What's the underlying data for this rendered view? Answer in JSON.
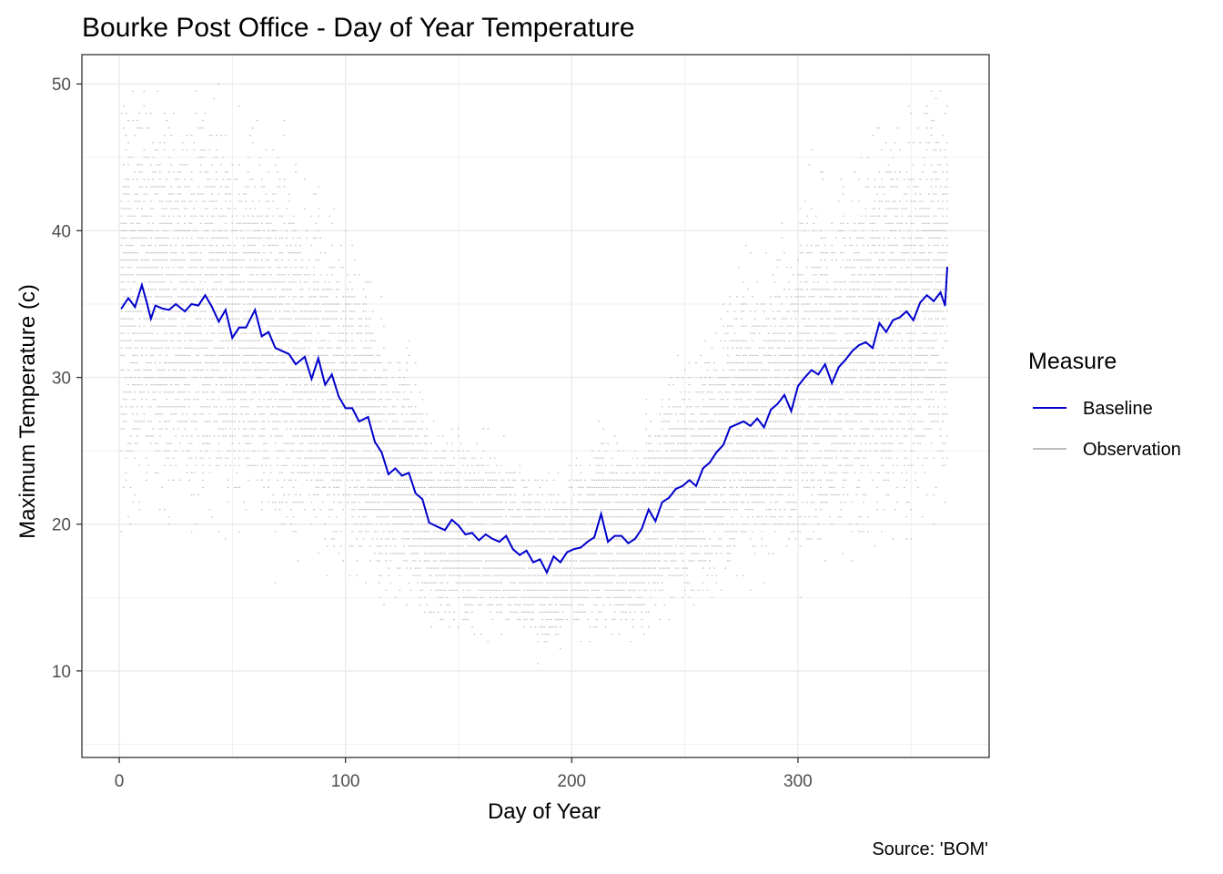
{
  "chart_data": {
    "type": "line",
    "title": "Bourke Post Office - Day of Year Temperature",
    "xlabel": "Day of Year",
    "ylabel": "Maximum Temperature (c)",
    "caption": "Source: 'BOM'",
    "xlim": [
      -16.5,
      384.5
    ],
    "ylim": [
      4.1,
      52.0
    ],
    "x_ticks": [
      0,
      100,
      200,
      300
    ],
    "y_ticks": [
      10,
      20,
      30,
      40,
      50
    ],
    "x_tick_labels": [
      "0",
      "100",
      "200",
      "300"
    ],
    "y_tick_labels": [
      "10",
      "20",
      "30",
      "40",
      "50"
    ],
    "grid": true,
    "legend": {
      "title": "Measure",
      "position": "right",
      "entries": [
        {
          "label": "Baseline",
          "color": "#0000cd"
        },
        {
          "label": "Observation",
          "color": "#bdbdbd"
        }
      ]
    },
    "colors": {
      "baseline": "#0000cd",
      "observation": "#bdbdbd",
      "grid": "#ebebeb"
    },
    "series": [
      {
        "name": "Baseline",
        "x": [
          1,
          4,
          7,
          10,
          12,
          14,
          16,
          19,
          22,
          25,
          29,
          32,
          35,
          38,
          41,
          44,
          47,
          50,
          53,
          56,
          60,
          63,
          66,
          69,
          72,
          75,
          78,
          82,
          85,
          88,
          91,
          94,
          97,
          100,
          103,
          106,
          110,
          113,
          116,
          119,
          122,
          125,
          128,
          131,
          134,
          137,
          141,
          144,
          147,
          150,
          153,
          156,
          159,
          162,
          165,
          168,
          171,
          174,
          177,
          180,
          183,
          186,
          189,
          192,
          195,
          198,
          201,
          204,
          207,
          210,
          213,
          216,
          219,
          222,
          225,
          228,
          231,
          234,
          237,
          240,
          243,
          246,
          249,
          252,
          255,
          258,
          261,
          264,
          267,
          270,
          273,
          276,
          279,
          282,
          285,
          288,
          291,
          294,
          297,
          300,
          303,
          306,
          309,
          312,
          315,
          318,
          321,
          324,
          327,
          330,
          333,
          336,
          339,
          342,
          345,
          348,
          351,
          354,
          357,
          360,
          363,
          365,
          366
        ],
        "values": [
          34.7,
          35.4,
          34.8,
          36.3,
          35.2,
          34.0,
          34.9,
          34.7,
          34.6,
          35.0,
          34.5,
          35.0,
          34.9,
          35.6,
          34.8,
          33.8,
          34.6,
          32.7,
          33.4,
          33.4,
          34.6,
          32.8,
          33.1,
          32.0,
          31.8,
          31.6,
          30.9,
          31.4,
          29.9,
          31.3,
          29.5,
          30.2,
          28.7,
          27.9,
          27.9,
          27.0,
          27.3,
          25.6,
          24.9,
          23.4,
          23.8,
          23.3,
          23.5,
          22.1,
          21.7,
          20.1,
          19.8,
          19.6,
          20.3,
          19.9,
          19.3,
          19.4,
          18.9,
          19.3,
          19.0,
          18.8,
          19.2,
          18.3,
          17.9,
          18.2,
          17.4,
          17.6,
          16.7,
          17.8,
          17.4,
          18.1,
          18.3,
          18.4,
          18.8,
          19.1,
          20.7,
          18.8,
          19.2,
          19.2,
          18.7,
          19.0,
          19.7,
          21.0,
          20.2,
          21.5,
          21.8,
          22.4,
          22.6,
          23.0,
          22.6,
          23.8,
          24.2,
          24.9,
          25.4,
          26.6,
          26.8,
          27.0,
          26.7,
          27.2,
          26.6,
          27.8,
          28.2,
          28.8,
          27.7,
          29.4,
          30.0,
          30.5,
          30.2,
          30.9,
          29.6,
          30.7,
          31.2,
          31.8,
          32.2,
          32.4,
          32.0,
          33.7,
          33.1,
          33.9,
          34.1,
          34.5,
          33.9,
          35.1,
          35.6,
          35.2,
          35.8,
          34.9,
          37.5
        ]
      },
      {
        "name": "Observation",
        "type": "scatter",
        "note": "dense cloud of daily observations around the baseline",
        "x_range": [
          1,
          366
        ],
        "y_range": [
          6.2,
          49.8
        ]
      }
    ]
  }
}
